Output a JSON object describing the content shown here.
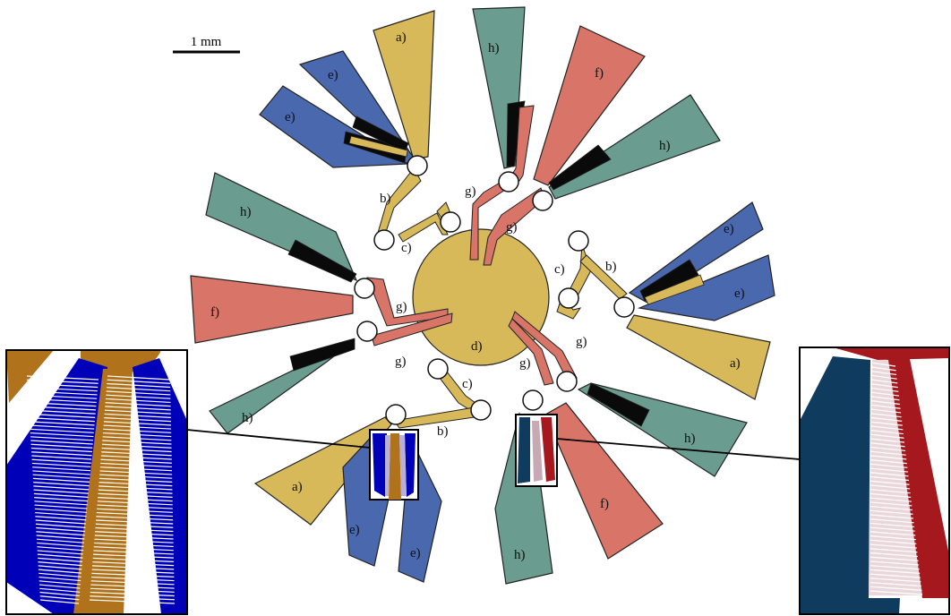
{
  "scale_bar": {
    "label": "1 mm"
  },
  "colors": {
    "yellow": "#d8b95a",
    "blue": "#4a68ad",
    "green": "#6a9c8f",
    "salmon": "#d87468",
    "black": "#0a0a0a",
    "outline": "#222222",
    "zoom_blue": "#0000b8",
    "zoom_brown": "#b0721a",
    "zoom_navy": "#0e3b5e",
    "zoom_red": "#a5181e"
  },
  "labels": {
    "a": "a)",
    "b": "b)",
    "c": "c)",
    "d": "d)",
    "e": "e)",
    "f": "f)",
    "g": "g)",
    "h": "h)"
  },
  "insets": {
    "left_zoom": {
      "description_icon": "interdigitated-electrode-zoom"
    },
    "right_zoom": {
      "description_icon": "interdigitated-electrode-zoom"
    }
  }
}
